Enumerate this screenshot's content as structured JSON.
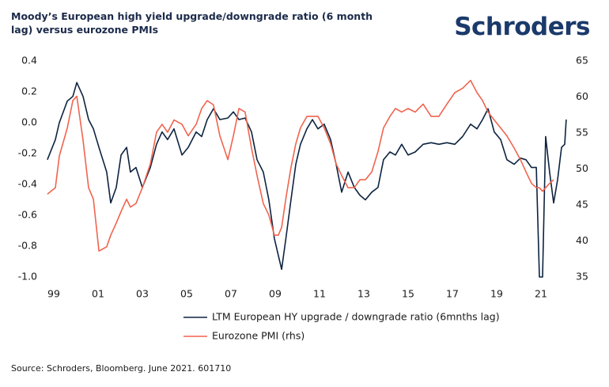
{
  "brand": "Schroders",
  "chart_data": {
    "type": "line",
    "title": "Moody’s European high yield upgrade/downgrade ratio (6 month lag) versus eurozone PMIs",
    "source": "Source: Schroders, Bloomberg. June 2021. 601710",
    "x": [
      1998.71,
      1999.07,
      1999.25,
      1999.61,
      1999.86,
      2000.04,
      2000.32,
      2000.57,
      2000.79,
      2001.04,
      2001.39,
      2001.57,
      2001.82,
      2002.04,
      2002.29,
      2002.46,
      2002.71,
      2003.0,
      2003.36,
      2003.64,
      2003.89,
      2004.14,
      2004.43,
      2004.79,
      2005.07,
      2005.43,
      2005.68,
      2005.93,
      2006.21,
      2006.5,
      2006.86,
      2007.11,
      2007.36,
      2007.64,
      2007.93,
      2008.18,
      2008.46,
      2008.71,
      2008.96,
      2009.14,
      2009.29,
      2009.5,
      2009.71,
      2009.93,
      2010.14,
      2010.43,
      2010.68,
      2010.93,
      2011.21,
      2011.5,
      2011.75,
      2012.0,
      2012.29,
      2012.57,
      2012.82,
      2013.07,
      2013.36,
      2013.64,
      2013.89,
      2014.18,
      2014.43,
      2014.71,
      2015.0,
      2015.32,
      2015.68,
      2016.04,
      2016.39,
      2016.75,
      2017.11,
      2017.46,
      2017.82,
      2018.11,
      2018.36,
      2018.61,
      2018.89,
      2019.18,
      2019.46,
      2019.79,
      2020.07,
      2020.32,
      2020.57,
      2020.79,
      2020.93,
      2021.07,
      2021.21,
      2021.39,
      2021.57,
      2021.75,
      2021.93,
      2022.07,
      2022.14
    ],
    "series": [
      {
        "name": "LTM European HY upgrade / downgrade ratio (6mnths lag)",
        "color": "#0d2340",
        "axis": "y",
        "values": [
          -0.24,
          -0.11,
          0.0,
          0.14,
          0.17,
          0.26,
          0.17,
          0.02,
          -0.04,
          -0.16,
          -0.32,
          -0.52,
          -0.42,
          -0.21,
          -0.16,
          -0.32,
          -0.29,
          -0.42,
          -0.29,
          -0.14,
          -0.06,
          -0.11,
          -0.04,
          -0.21,
          -0.16,
          -0.06,
          -0.09,
          0.02,
          0.09,
          0.02,
          0.03,
          0.07,
          0.02,
          0.03,
          -0.06,
          -0.24,
          -0.32,
          -0.5,
          -0.75,
          -0.86,
          -0.95,
          -0.73,
          -0.5,
          -0.27,
          -0.14,
          -0.04,
          0.02,
          -0.04,
          -0.01,
          -0.11,
          -0.27,
          -0.45,
          -0.32,
          -0.42,
          -0.47,
          -0.5,
          -0.45,
          -0.42,
          -0.24,
          -0.19,
          -0.21,
          -0.14,
          -0.21,
          -0.19,
          -0.14,
          -0.13,
          -0.14,
          -0.13,
          -0.14,
          -0.09,
          -0.01,
          -0.04,
          0.02,
          0.09,
          -0.06,
          -0.11,
          -0.24,
          -0.27,
          -0.23,
          -0.24,
          -0.29,
          -0.29,
          -1.0,
          -1.0,
          -0.09,
          -0.32,
          -0.52,
          -0.37,
          -0.16,
          -0.14,
          0.02
        ]
      },
      {
        "name": "Eurozone PMI (rhs)",
        "color": "#f0644e",
        "axis": "y2",
        "values": [
          46.5,
          47.4,
          51.8,
          55.7,
          59.5,
          60.1,
          54.0,
          47.4,
          45.8,
          38.6,
          39.2,
          40.8,
          42.5,
          44.1,
          45.8,
          44.7,
          45.2,
          47.4,
          50.7,
          55.1,
          56.2,
          55.1,
          56.8,
          56.2,
          54.6,
          56.2,
          58.4,
          59.5,
          58.9,
          54.6,
          51.3,
          54.6,
          58.4,
          57.9,
          52.9,
          49.1,
          45.2,
          43.6,
          40.8,
          40.8,
          41.9,
          46.3,
          50.2,
          53.5,
          55.7,
          57.3,
          57.3,
          57.3,
          55.7,
          53.5,
          50.7,
          49.1,
          47.4,
          47.4,
          48.5,
          48.5,
          49.6,
          52.4,
          55.7,
          57.3,
          58.4,
          57.9,
          58.4,
          57.9,
          59.0,
          57.3,
          57.3,
          59.0,
          60.6,
          61.2,
          62.3,
          60.6,
          59.5,
          57.9,
          56.8,
          55.7,
          54.6,
          52.9,
          51.3,
          49.6,
          48.0,
          47.4,
          47.4,
          46.9,
          47.4,
          48.0,
          48.5,
          null,
          null,
          null,
          null
        ]
      }
    ],
    "xlim": [
      1998.5,
      2022.25
    ],
    "xticks": [
      {
        "value": 1999,
        "label": "99"
      },
      {
        "value": 2001,
        "label": "01"
      },
      {
        "value": 2003,
        "label": "03"
      },
      {
        "value": 2005,
        "label": "05"
      },
      {
        "value": 2007,
        "label": "07"
      },
      {
        "value": 2009,
        "label": "09"
      },
      {
        "value": 2011,
        "label": "11"
      },
      {
        "value": 2013,
        "label": "13"
      },
      {
        "value": 2015,
        "label": "15"
      },
      {
        "value": 2017,
        "label": "17"
      },
      {
        "value": 2019,
        "label": "19"
      },
      {
        "value": 2021,
        "label": "21"
      }
    ],
    "ylim": [
      -1.0,
      0.4
    ],
    "yticks": [
      0.4,
      0.2,
      {
        "value": 0,
        "label": "0.0"
      },
      -0.2,
      -0.4,
      -0.6,
      -0.8,
      {
        "value": -1,
        "label": "-1.0"
      }
    ],
    "y2lim": [
      35,
      65
    ],
    "y2ticks": [
      65,
      60,
      55,
      50,
      45,
      40,
      35
    ],
    "grid": false
  }
}
